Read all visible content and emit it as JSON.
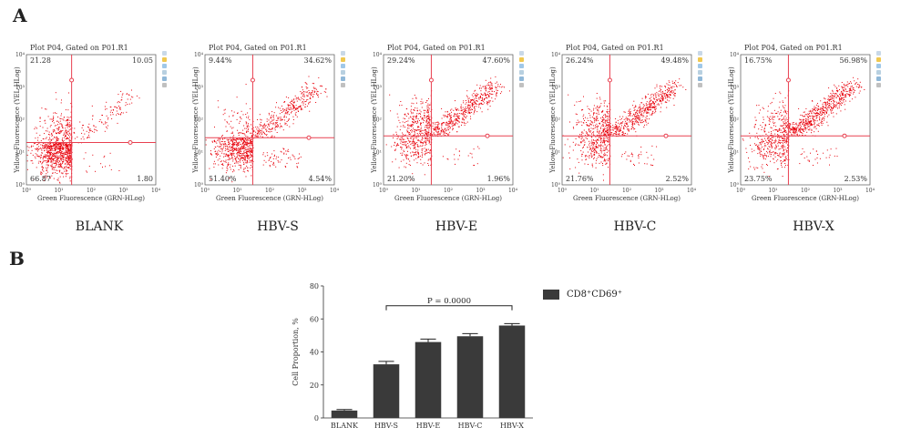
{
  "panel_a_label": "A",
  "panel_b_label": "B",
  "flow": {
    "plot_title": "Plot P04, Gated on P01.R1",
    "x_axis_label": "Green Fluorescence (GRN-HLog)",
    "y_axis_label": "Yellow Fluorescence (YEL-HLog)",
    "x_ticks": [
      "10⁰",
      "10¹",
      "10²",
      "10³",
      "10⁴"
    ],
    "y_ticks": [
      "10⁰",
      "10¹",
      "10²",
      "10³",
      "10⁴"
    ],
    "colors": {
      "dot": "#e8000a",
      "gate": "#e84050",
      "axis": "#555555"
    }
  },
  "chart_data": [
    {
      "type": "scatter",
      "title": "Plot P04, Gated on P01.R1",
      "xlabel": "Green Fluorescence (GRN-HLog)",
      "ylabel": "Yellow Fluorescence (YEL-HLog)",
      "xlim": [
        1,
        10000
      ],
      "ylim": [
        1,
        10000
      ],
      "scale": "log",
      "plots": [
        {
          "caption": "BLANK",
          "quadrants": {
            "upper_left": "21.28",
            "upper_right": "10.05",
            "lower_left": "66.87",
            "lower_right": "1.80"
          },
          "gate_x": 25,
          "gate_y": 20
        },
        {
          "caption": "HBV-S",
          "quadrants": {
            "upper_left": "9.44%",
            "upper_right": "34.62%",
            "lower_left": "51.40%",
            "lower_right": "4.54%"
          },
          "gate_x": 30,
          "gate_y": 28
        },
        {
          "caption": "HBV-E",
          "quadrants": {
            "upper_left": "29.24%",
            "upper_right": "47.60%",
            "lower_left": "21.20%",
            "lower_right": "1.96%"
          },
          "gate_x": 30,
          "gate_y": 32
        },
        {
          "caption": "HBV-C",
          "quadrants": {
            "upper_left": "26.24%",
            "upper_right": "49.48%",
            "lower_left": "21.76%",
            "lower_right": "2.52%"
          },
          "gate_x": 30,
          "gate_y": 32
        },
        {
          "caption": "HBV-X",
          "quadrants": {
            "upper_left": "16.75%",
            "upper_right": "56.98%",
            "lower_left": "23.75%",
            "lower_right": "2.53%"
          },
          "gate_x": 30,
          "gate_y": 32
        }
      ]
    },
    {
      "type": "bar",
      "categories": [
        "BLANK",
        "HBV-S",
        "HBV-E",
        "HBV-C",
        "HBV-X"
      ],
      "values": [
        4.5,
        32.5,
        46,
        49.5,
        56
      ],
      "errors": [
        0.6,
        1.8,
        1.8,
        1.6,
        1.2
      ],
      "ylabel": "Cell Proportion, %",
      "ylim": [
        0,
        80
      ],
      "yticks": [
        0,
        20,
        40,
        60,
        80
      ],
      "legend": "CD8⁺CD69⁺",
      "legend_position": "right",
      "annotation": "P = 0.0000",
      "bar_color": "#3a3a3a"
    }
  ]
}
